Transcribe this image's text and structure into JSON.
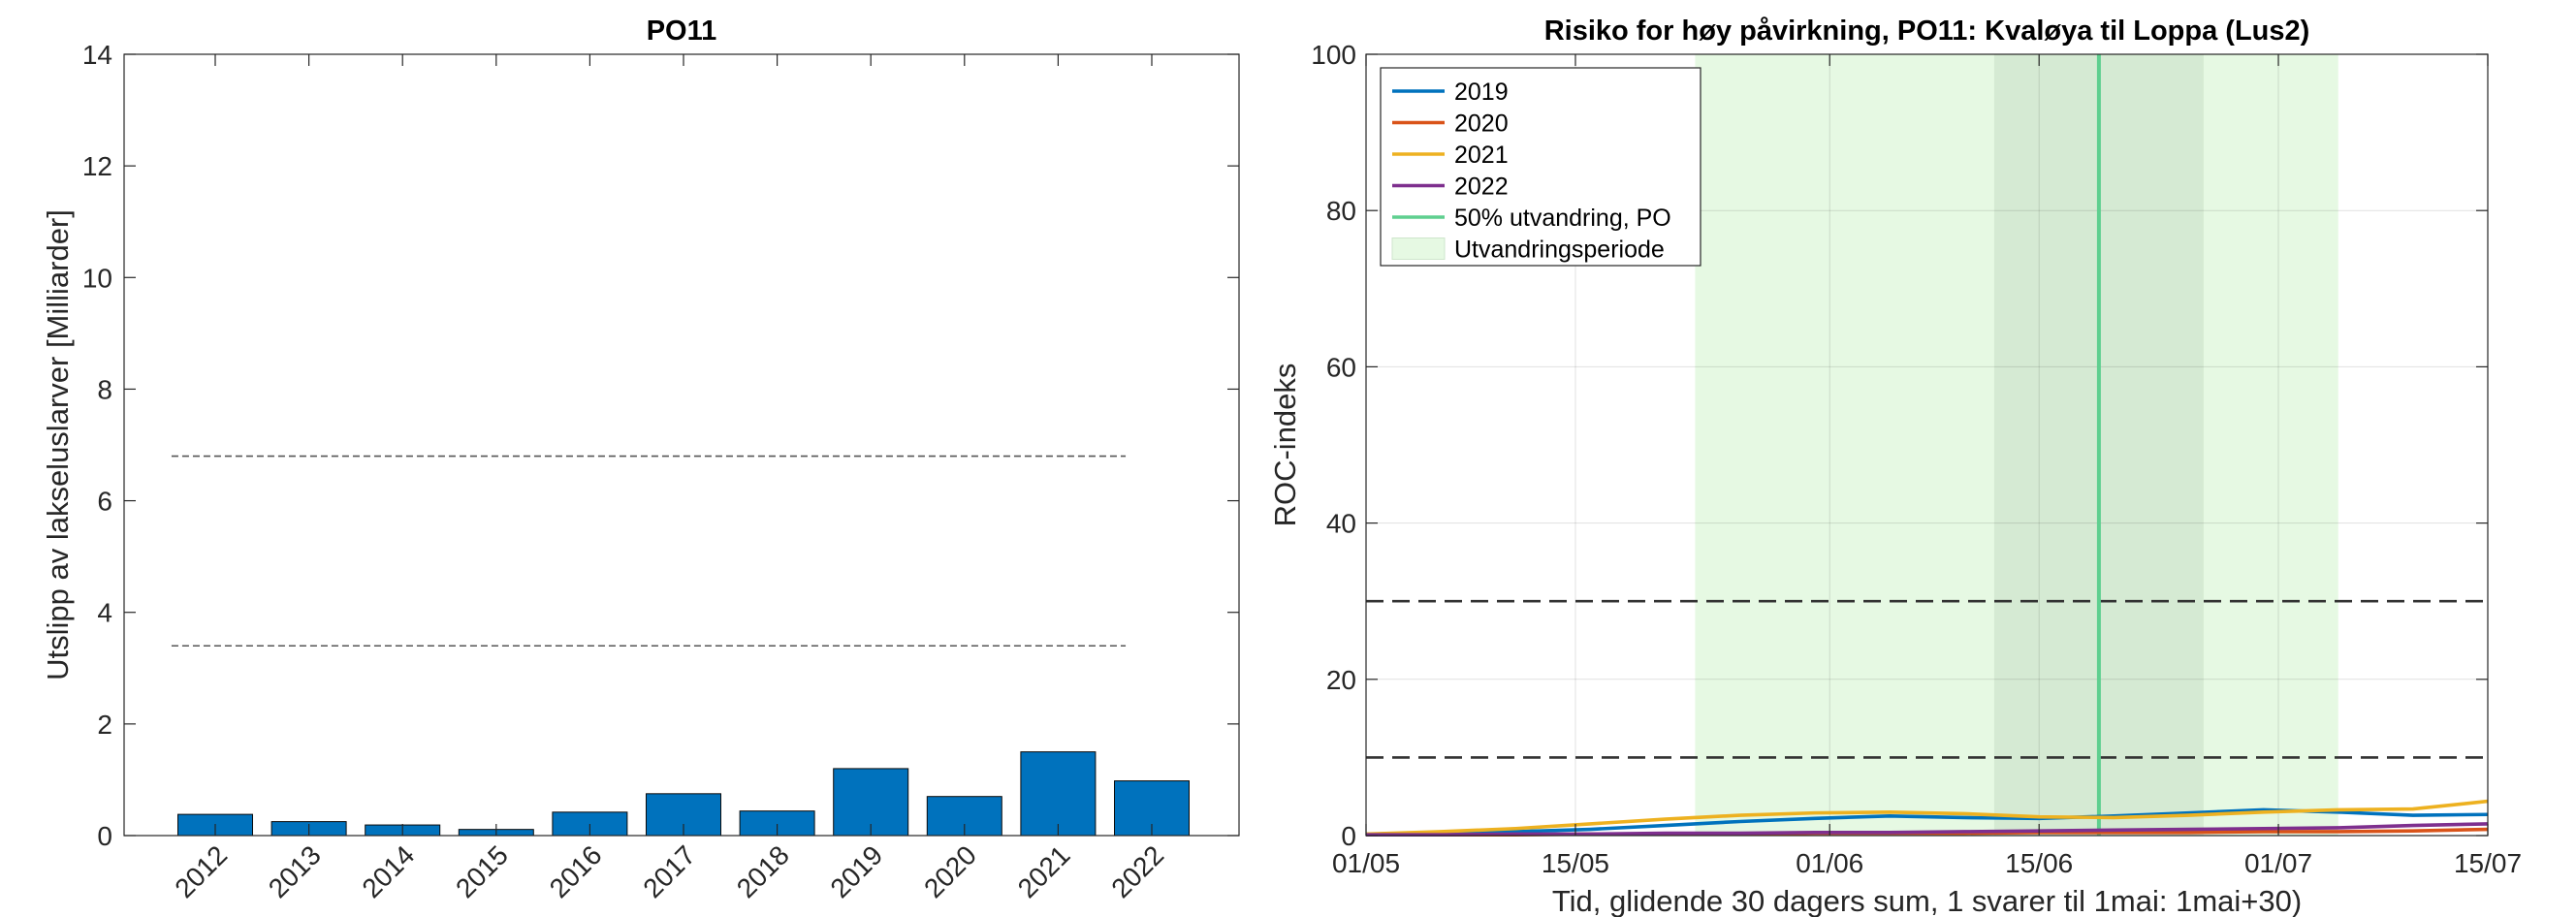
{
  "chart_data": [
    {
      "type": "bar",
      "title": "PO11",
      "ylabel": "Utslipp av lakseluslarver [Milliarder]",
      "xlabel": "",
      "ylim": [
        0,
        14
      ],
      "yticks": [
        "0",
        "2",
        "4",
        "6",
        "8",
        "10",
        "12",
        "14"
      ],
      "categories": [
        "2012",
        "2013",
        "2014",
        "2015",
        "2016",
        "2017",
        "2018",
        "2019",
        "2020",
        "2021",
        "2022"
      ],
      "values": [
        0.38,
        0.25,
        0.19,
        0.11,
        0.42,
        0.75,
        0.44,
        1.2,
        0.7,
        1.5,
        0.98
      ],
      "reference_lines": [
        3.4,
        6.8
      ],
      "bar_color": "#0072BD",
      "grid": false
    },
    {
      "type": "line",
      "title": "Risiko for høy påvirkning, PO11: Kvaløya til Loppa (Lus2)",
      "ylabel": "ROC-indeks",
      "xlabel": "Tid, glidende 30 dagers sum, 1 svarer til 1mai: 1mai+30)",
      "ylim": [
        0,
        100
      ],
      "yticks": [
        "0",
        "20",
        "40",
        "60",
        "80",
        "100"
      ],
      "xticks": [
        "01/05",
        "15/05",
        "01/06",
        "15/06",
        "01/07",
        "15/07"
      ],
      "xtick_days": [
        0,
        14,
        31,
        45,
        61,
        75
      ],
      "grid": true,
      "legend_position": "top-left",
      "reference_lines": [
        10,
        30
      ],
      "migration_period": {
        "label": "Utvandringsperiode",
        "start_day": 22,
        "end_day": 65,
        "color": "#e6f9e3"
      },
      "core_period": {
        "start_day": 42,
        "end_day": 56,
        "color": "#d5ead3"
      },
      "median_migration": {
        "label": "50% utvandring, PO",
        "day": 49,
        "color": "#5fcf8f"
      },
      "series": [
        {
          "name": "2019",
          "color": "#0072BD",
          "x": [
            0,
            5,
            10,
            15,
            20,
            25,
            30,
            35,
            40,
            45,
            50,
            55,
            60,
            65,
            70,
            75
          ],
          "y": [
            0.2,
            0.3,
            0.5,
            0.8,
            1.3,
            1.8,
            2.2,
            2.5,
            2.3,
            2.2,
            2.5,
            2.9,
            3.3,
            3.0,
            2.6,
            2.7
          ]
        },
        {
          "name": "2020",
          "color": "#D95319",
          "x": [
            0,
            5,
            10,
            15,
            20,
            25,
            30,
            35,
            40,
            45,
            50,
            55,
            60,
            65,
            70,
            75
          ],
          "y": [
            0.1,
            0.1,
            0.1,
            0.2,
            0.2,
            0.2,
            0.3,
            0.3,
            0.3,
            0.4,
            0.4,
            0.4,
            0.5,
            0.5,
            0.6,
            0.8
          ]
        },
        {
          "name": "2021",
          "color": "#EDB120",
          "x": [
            0,
            5,
            10,
            15,
            20,
            25,
            30,
            35,
            40,
            45,
            50,
            55,
            60,
            65,
            70,
            75
          ],
          "y": [
            0.2,
            0.5,
            0.9,
            1.5,
            2.1,
            2.6,
            2.9,
            3.0,
            2.8,
            2.4,
            2.3,
            2.6,
            3.0,
            3.3,
            3.4,
            4.4
          ]
        },
        {
          "name": "2022",
          "color": "#7E2F8E",
          "x": [
            0,
            5,
            10,
            15,
            20,
            25,
            30,
            35,
            40,
            45,
            50,
            55,
            60,
            65,
            70,
            75
          ],
          "y": [
            0.1,
            0.1,
            0.2,
            0.2,
            0.3,
            0.3,
            0.4,
            0.4,
            0.5,
            0.6,
            0.7,
            0.8,
            0.9,
            1.0,
            1.3,
            1.5
          ]
        }
      ]
    }
  ]
}
